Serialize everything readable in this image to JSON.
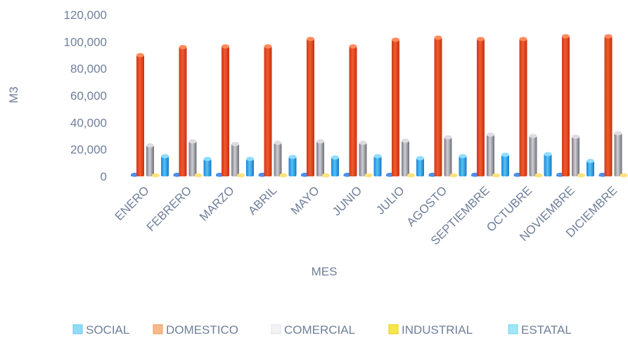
{
  "chart_data": {
    "type": "bar",
    "xlabel": "MES",
    "ylabel": "M3",
    "ylim": [
      0,
      120000
    ],
    "yticks": [
      "0",
      "20,000",
      "40,000",
      "60,000",
      "80,000",
      "100,000",
      "120,000"
    ],
    "categories": [
      "ENERO",
      "FEBRERO",
      "MARZO",
      "ABRIL",
      "MAYO",
      "JUNIO",
      "JULIO",
      "AGOSTO",
      "SEPTIEMBRE",
      "OCTUBRE",
      "NOVIEMBRE",
      "DICIEMBRE"
    ],
    "series": [
      {
        "name": "SOCIAL",
        "color": "#2e6fd8",
        "values": [
          1200,
          1200,
          1200,
          1200,
          1200,
          1200,
          1200,
          1200,
          1200,
          1200,
          1200,
          1200
        ]
      },
      {
        "name": "DOMESTICO",
        "color": "#f06a2a",
        "values": [
          90000,
          96000,
          96500,
          96500,
          102000,
          96500,
          101500,
          103000,
          102000,
          102000,
          104000,
          104000
        ]
      },
      {
        "name": "COMERCIAL",
        "color": "#a7a7ad",
        "values": [
          23000,
          26000,
          24000,
          25000,
          26000,
          25000,
          26500,
          29000,
          31000,
          30000,
          29500,
          32000
        ]
      },
      {
        "name": "INDUSTRIAL",
        "color": "#f0c419",
        "values": [
          800,
          800,
          800,
          800,
          800,
          800,
          800,
          800,
          800,
          800,
          800,
          800
        ]
      },
      {
        "name": "ESTATAL",
        "color": "#2f9be8",
        "values": [
          15000,
          13000,
          13000,
          14500,
          14000,
          15000,
          13500,
          15000,
          16000,
          16500,
          11500,
          17500
        ]
      }
    ],
    "grid": false,
    "legend_position": "bottom"
  }
}
